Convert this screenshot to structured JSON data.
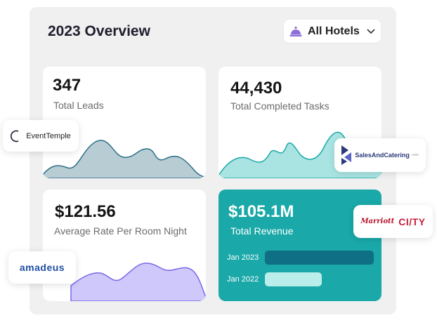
{
  "header": {
    "title": "2023 Overview",
    "hotel_selector": {
      "label": "All Hotels",
      "icon": "concierge-bell-icon"
    }
  },
  "cards": {
    "leads": {
      "value": "347",
      "caption": "Total Leads",
      "color": "#8fb4c3"
    },
    "tasks": {
      "value": "44,430",
      "caption": "Total Completed Tasks",
      "color": "#a9e4e2"
    },
    "rate": {
      "value": "$121.56",
      "caption": "Average Rate Per Room Night",
      "color": "#c9c3fb"
    },
    "revenue": {
      "value": "$105.1M",
      "caption": "Total Revenue",
      "background": "#1aa8a8",
      "rows": [
        {
          "label": "Jan 2023",
          "fraction": 1.0,
          "color": "#0e6f85"
        },
        {
          "label": "Jan 2022",
          "fraction": 0.52,
          "color": "#b9eeea"
        }
      ]
    }
  },
  "logos": {
    "eventtemple": "EventTemple",
    "salesandcatering": "SalesAndCatering",
    "salesandcatering_suffix": ".com",
    "amadeus": "amadeus",
    "marriott": "Marriott",
    "city": "CI/TY"
  }
}
